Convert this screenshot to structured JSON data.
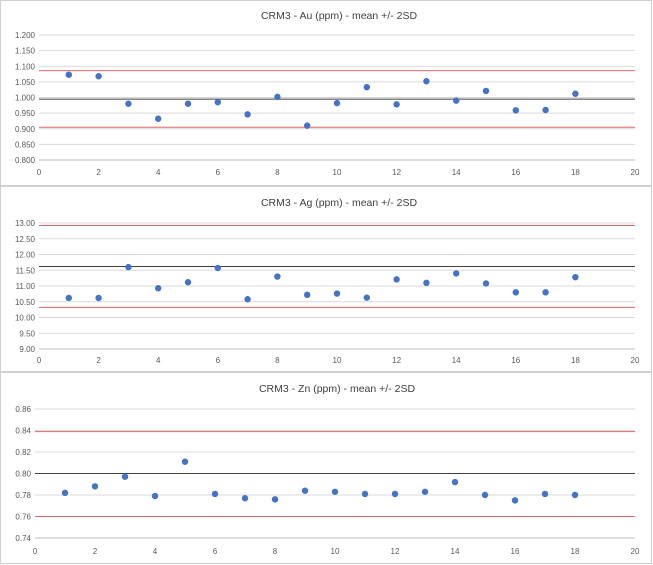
{
  "chart_data": [
    {
      "type": "scatter",
      "title": "CRM3 - Au (ppm) - mean +/- 2SD",
      "xlim": [
        0,
        20
      ],
      "ylim": [
        0.8,
        1.2
      ],
      "xticks": [
        "0",
        "2",
        "4",
        "6",
        "8",
        "10",
        "12",
        "14",
        "16",
        "18",
        "20"
      ],
      "yticks": [
        "0.800",
        "0.850",
        "0.900",
        "0.950",
        "1.000",
        "1.050",
        "1.100",
        "1.150",
        "1.200"
      ],
      "grid": true,
      "x": [
        1,
        2,
        3,
        4,
        5,
        6,
        7,
        8,
        9,
        10,
        11,
        12,
        13,
        14,
        15,
        16,
        17,
        18
      ],
      "y": [
        1.073,
        1.068,
        0.98,
        0.932,
        0.98,
        0.985,
        0.946,
        1.002,
        0.91,
        0.982,
        1.033,
        0.978,
        1.052,
        0.99,
        1.021,
        0.959,
        0.96,
        1.012
      ],
      "mean": 0.995,
      "upper": 1.086,
      "lower": 0.905,
      "colors": {
        "point": "#4472c4",
        "mean": "#404040",
        "limit": "#e06666",
        "grid": "#d9d9d9"
      }
    },
    {
      "type": "scatter",
      "title": "CRM3 - Ag (ppm) - mean +/- 2SD",
      "xlim": [
        0,
        20
      ],
      "ylim": [
        9.0,
        13.0
      ],
      "xticks": [
        "0",
        "2",
        "4",
        "6",
        "8",
        "10",
        "12",
        "14",
        "16",
        "18",
        "20"
      ],
      "yticks": [
        "9.00",
        "9.50",
        "10.00",
        "10.50",
        "11.00",
        "11.50",
        "12.00",
        "12.50",
        "13.00"
      ],
      "grid": true,
      "x": [
        1,
        2,
        3,
        4,
        5,
        6,
        7,
        8,
        9,
        10,
        11,
        12,
        13,
        14,
        15,
        16,
        17,
        18
      ],
      "y": [
        10.62,
        10.62,
        11.6,
        10.93,
        11.12,
        11.57,
        10.58,
        11.3,
        10.72,
        10.76,
        10.63,
        11.21,
        11.1,
        11.4,
        11.08,
        10.8,
        10.8,
        11.28
      ],
      "mean": 11.62,
      "upper": 12.92,
      "lower": 10.32,
      "colors": {
        "point": "#4472c4",
        "mean": "#404040",
        "limit": "#e06666",
        "grid": "#d9d9d9"
      }
    },
    {
      "type": "scatter",
      "title": "CRM3 - Zn (ppm) - mean +/- 2SD",
      "xlim": [
        0,
        20
      ],
      "ylim": [
        0.74,
        0.86
      ],
      "xticks": [
        "0",
        "2",
        "4",
        "6",
        "8",
        "10",
        "12",
        "14",
        "16",
        "18",
        "20"
      ],
      "yticks": [
        "0.74",
        "0.76",
        "0.78",
        "0.80",
        "0.82",
        "0.84",
        "0.86"
      ],
      "grid": true,
      "x": [
        1,
        2,
        3,
        4,
        5,
        6,
        7,
        8,
        9,
        10,
        11,
        12,
        13,
        14,
        15,
        16,
        17,
        18
      ],
      "y": [
        0.782,
        0.788,
        0.797,
        0.779,
        0.811,
        0.781,
        0.777,
        0.776,
        0.784,
        0.783,
        0.781,
        0.781,
        0.783,
        0.792,
        0.78,
        0.775,
        0.781,
        0.78
      ],
      "mean": 0.8,
      "upper": 0.839,
      "lower": 0.76,
      "colors": {
        "point": "#4472c4",
        "mean": "#404040",
        "limit": "#e06666",
        "grid": "#d9d9d9"
      }
    }
  ]
}
